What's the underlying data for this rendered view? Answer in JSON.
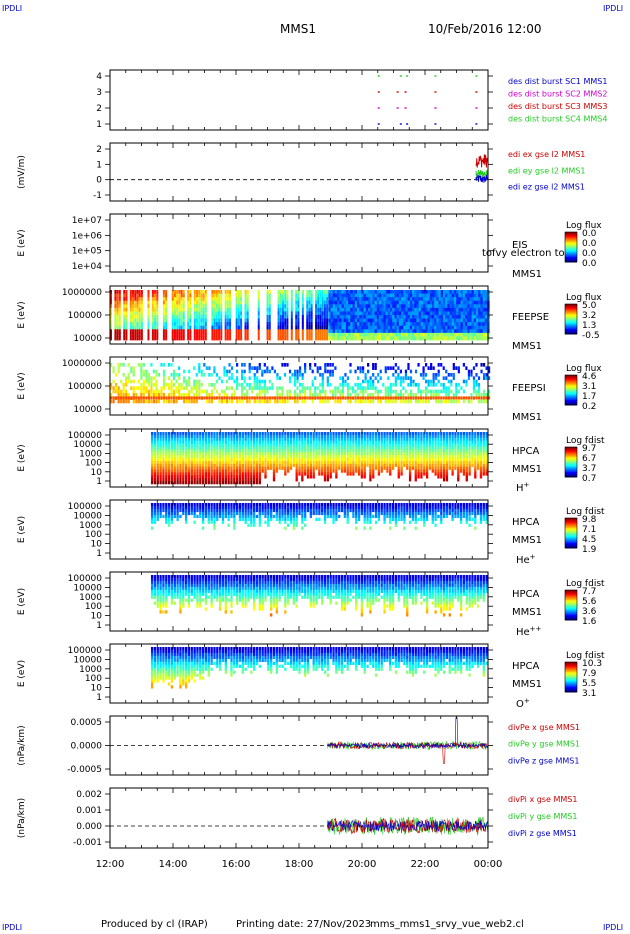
{
  "header": {
    "corner_tl": "IPDLI",
    "corner_tr": "IPDLI",
    "corner_bl": "IPDLI",
    "corner_br": "IPDLI",
    "spacecraft": "MMS1",
    "datetime": "10/Feb/2016 12:00"
  },
  "footer": {
    "produced_by": "Produced by cl (IRAP)",
    "printing_date": "Printing date: 27/Nov/2023",
    "script_name": "mms_mms1_srvy_vue_web2.cl"
  },
  "colors": {
    "red": "#cc0000",
    "green": "#22cc22",
    "blue": "#0000cc",
    "magenta": "#cc00cc"
  },
  "chart_data": {
    "type": "stacked-panels",
    "x_axis": {
      "ticks": [
        "12:00",
        "14:00",
        "16:00",
        "18:00",
        "20:00",
        "22:00",
        "00:00"
      ],
      "range_hours": [
        12,
        24
      ]
    },
    "panels": [
      {
        "id": "des",
        "type": "scatter",
        "ylabel": "",
        "yticks": [
          "4",
          "3",
          "2",
          "1"
        ],
        "legend": [
          {
            "label": "des dist burst SC1 MMS1",
            "color": "#0000cc"
          },
          {
            "label": "des dist burst SC2 MMS2",
            "color": "#cc00cc"
          },
          {
            "label": "des dist burst SC3 MMS3",
            "color": "#cc0000"
          },
          {
            "label": "des dist burst SC4 MMS4",
            "color": "#22cc22"
          }
        ],
        "series": [
          {
            "level": 4,
            "times": [
              20.5,
              21.2,
              21.4,
              22.3,
              23.6
            ],
            "color": "#22cc22"
          },
          {
            "level": 3,
            "times": [
              20.5,
              21.1,
              21.35,
              22.3,
              23.6
            ],
            "color": "#cc0000"
          },
          {
            "level": 2,
            "times": [
              20.5,
              21.1,
              21.35,
              22.3,
              23.6
            ],
            "color": "#cc00cc"
          },
          {
            "level": 1,
            "times": [
              20.5,
              21.2,
              21.4,
              22.3,
              23.6
            ],
            "color": "#0000cc"
          }
        ]
      },
      {
        "id": "edi",
        "type": "line",
        "ylabel": "(mV/m)",
        "yticks": [
          "2",
          "1",
          "0",
          "-1"
        ],
        "ylim": [
          -1.5,
          2
        ],
        "legend": [
          {
            "label": "edi ex gse l2 MMS1",
            "color": "#cc0000"
          },
          {
            "label": "edi ey gse l2 MMS1",
            "color": "#22cc22"
          },
          {
            "label": "edi ez gse l2 MMS1",
            "color": "#0000cc"
          }
        ]
      },
      {
        "id": "eis",
        "type": "heatmap",
        "ylabel": "E (eV)",
        "yticks": [
          "1e+07",
          "1e+06",
          "1e+05",
          "1e+04"
        ],
        "right_labels": [
          "EIS",
          "MMS1"
        ],
        "overlay_label": "tofvy electron tof",
        "colorbar": {
          "title": "Log flux",
          "ticks": [
            "0.0",
            "0.0",
            "0.0",
            "0.0"
          ]
        }
      },
      {
        "id": "feepse",
        "type": "heatmap",
        "ylabel": "E (eV)",
        "yticks": [
          "1000000",
          "100000",
          "10000"
        ],
        "right_labels": [
          "FEEPSE",
          "MMS1"
        ],
        "colorbar": {
          "title": "Log flux",
          "ticks": [
            "5.0",
            "3.2",
            "1.3",
            "-0.5"
          ]
        }
      },
      {
        "id": "feepsi",
        "type": "heatmap",
        "ylabel": "E (eV)",
        "yticks": [
          "1000000",
          "100000",
          "10000"
        ],
        "right_labels": [
          "FEEPSI",
          "MMS1"
        ],
        "colorbar": {
          "title": "Log flux",
          "ticks": [
            "4.6",
            "3.1",
            "1.7",
            "0.2"
          ]
        }
      },
      {
        "id": "hpca-h",
        "type": "heatmap",
        "ylabel": "E (eV)",
        "yticks": [
          "100000",
          "10000",
          "1000",
          "100",
          "10",
          "1"
        ],
        "right_labels": [
          "HPCA",
          "MMS1"
        ],
        "species": "H",
        "species_sup": "+",
        "colorbar": {
          "title": "Log fdist",
          "ticks": [
            "9.7",
            "6.7",
            "3.7",
            "0.7"
          ]
        }
      },
      {
        "id": "hpca-he",
        "type": "heatmap",
        "ylabel": "E (eV)",
        "yticks": [
          "100000",
          "10000",
          "1000",
          "100",
          "10",
          "1"
        ],
        "right_labels": [
          "HPCA",
          "MMS1"
        ],
        "species": "He",
        "species_sup": "+",
        "colorbar": {
          "title": "Log fdist",
          "ticks": [
            "9.8",
            "7.1",
            "4.5",
            "1.9"
          ]
        }
      },
      {
        "id": "hpca-he2",
        "type": "heatmap",
        "ylabel": "E (eV)",
        "yticks": [
          "100000",
          "10000",
          "1000",
          "100",
          "10",
          "1"
        ],
        "right_labels": [
          "HPCA",
          "MMS1"
        ],
        "species": "He",
        "species_sup": "++",
        "colorbar": {
          "title": "Log fdist",
          "ticks": [
            "7.7",
            "5.6",
            "3.6",
            "1.6"
          ]
        }
      },
      {
        "id": "hpca-o",
        "type": "heatmap",
        "ylabel": "E (eV)",
        "yticks": [
          "100000",
          "10000",
          "1000",
          "100",
          "10",
          "1"
        ],
        "right_labels": [
          "HPCA",
          "MMS1"
        ],
        "species": "O",
        "species_sup": "+",
        "colorbar": {
          "title": "Log fdist",
          "ticks": [
            "10.3",
            "7.9",
            "5.5",
            "3.1"
          ]
        }
      },
      {
        "id": "divpe",
        "type": "line",
        "ylabel": "(nPa/km)",
        "yticks": [
          "0.0005",
          "0.0000",
          "-0.0005"
        ],
        "legend": [
          {
            "label": "divPe x gse MMS1",
            "color": "#cc0000"
          },
          {
            "label": "divPe y gse MMS1",
            "color": "#22cc22"
          },
          {
            "label": "divPe z gse MMS1",
            "color": "#0000cc"
          }
        ]
      },
      {
        "id": "divpi",
        "type": "line",
        "ylabel": "(nPa/km)",
        "yticks": [
          "0.002",
          "0.001",
          "0.000",
          "-0.001"
        ],
        "legend": [
          {
            "label": "divPi x gse MMS1",
            "color": "#cc0000"
          },
          {
            "label": "divPi y gse MMS1",
            "color": "#22cc22"
          },
          {
            "label": "divPi z gse MMS1",
            "color": "#0000cc"
          }
        ]
      }
    ]
  }
}
